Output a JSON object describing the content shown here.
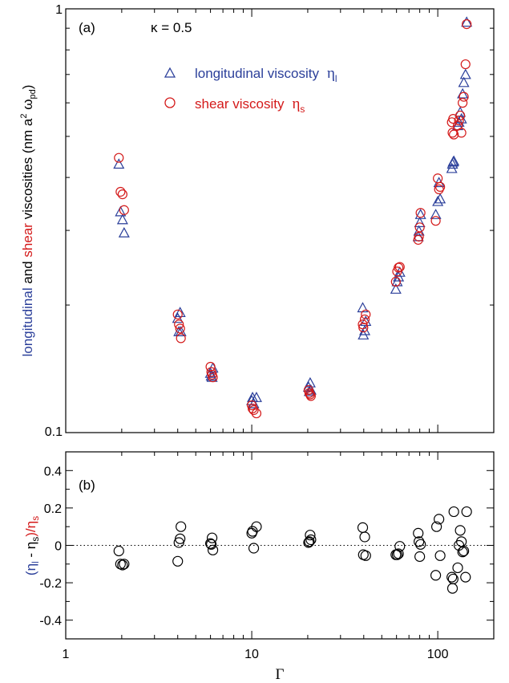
{
  "colors": {
    "longitudinal": "#2b3f9a",
    "shear": "#d41a1a",
    "diff": "#000000"
  },
  "chart_data": [
    {
      "type": "scatter",
      "panel_label": "(a)",
      "annotation": "κ = 0.5",
      "x_scale": "log",
      "y_scale": "log",
      "xlim": [
        1,
        200
      ],
      "ylim": [
        0.1,
        1
      ],
      "y_tick_labels": [
        "0.1",
        "1"
      ],
      "ylabel_parts": {
        "a": "longitudinal",
        "b": " and ",
        "c": "shear",
        "d": " viscosities (nm a",
        "e": "2",
        "f": " ω",
        "g": "pd",
        "h": ")"
      },
      "legend_pos": "top-center",
      "series": [
        {
          "name": "longitudinal viscosity",
          "symbol": "η",
          "symbol_sub": "l",
          "marker": "triangle",
          "points": [
            [
              1.93,
              0.43
            ],
            [
              1.97,
              0.332
            ],
            [
              2.02,
              0.318
            ],
            [
              2.06,
              0.296
            ],
            [
              4.0,
              0.186
            ],
            [
              4.06,
              0.173
            ],
            [
              4.12,
              0.192
            ],
            [
              4.16,
              0.173
            ],
            [
              6.0,
              0.138
            ],
            [
              6.06,
              0.136
            ],
            [
              6.12,
              0.135
            ],
            [
              6.18,
              0.142
            ],
            [
              10.0,
              0.119
            ],
            [
              10.1,
              0.121
            ],
            [
              10.25,
              0.117
            ],
            [
              10.6,
              0.121
            ],
            [
              20.2,
              0.128
            ],
            [
              20.4,
              0.125
            ],
            [
              20.6,
              0.131
            ],
            [
              20.8,
              0.126
            ],
            [
              39.5,
              0.197
            ],
            [
              39.8,
              0.17
            ],
            [
              40.5,
              0.174
            ],
            [
              41.0,
              0.183
            ],
            [
              59.5,
              0.218
            ],
            [
              60.5,
              0.227
            ],
            [
              61.5,
              0.233
            ],
            [
              62.5,
              0.239
            ],
            [
              78.5,
              0.29
            ],
            [
              79.2,
              0.299
            ],
            [
              80.0,
              0.313
            ],
            [
              80.8,
              0.327
            ],
            [
              97.5,
              0.327
            ],
            [
              100.0,
              0.351
            ],
            [
              101.5,
              0.389
            ],
            [
              103.0,
              0.356
            ],
            [
              119.0,
              0.42
            ],
            [
              120.0,
              0.43
            ],
            [
              121.0,
              0.435
            ],
            [
              122.0,
              0.437
            ],
            [
              128.0,
              0.53
            ],
            [
              130.0,
              0.54
            ],
            [
              132.0,
              0.57
            ],
            [
              134.0,
              0.55
            ],
            [
              136.0,
              0.63
            ],
            [
              138.0,
              0.67
            ],
            [
              141.0,
              0.7
            ],
            [
              143.0,
              0.93
            ]
          ]
        },
        {
          "name": "shear viscosity",
          "symbol": "η",
          "symbol_sub": "s",
          "marker": "circle",
          "points": [
            [
              1.93,
              0.445
            ],
            [
              1.97,
              0.37
            ],
            [
              2.02,
              0.365
            ],
            [
              2.06,
              0.335
            ],
            [
              4.0,
              0.19
            ],
            [
              4.06,
              0.18
            ],
            [
              4.12,
              0.176
            ],
            [
              4.16,
              0.167
            ],
            [
              6.0,
              0.143
            ],
            [
              6.06,
              0.139
            ],
            [
              6.12,
              0.137
            ],
            [
              6.18,
              0.135
            ],
            [
              10.0,
              0.116
            ],
            [
              10.1,
              0.114
            ],
            [
              10.25,
              0.113
            ],
            [
              10.6,
              0.111
            ],
            [
              20.2,
              0.126
            ],
            [
              20.4,
              0.124
            ],
            [
              20.6,
              0.123
            ],
            [
              20.8,
              0.122
            ],
            [
              39.5,
              0.18
            ],
            [
              39.8,
              0.177
            ],
            [
              40.5,
              0.185
            ],
            [
              41.0,
              0.19
            ],
            [
              59.5,
              0.227
            ],
            [
              60.5,
              0.24
            ],
            [
              61.5,
              0.245
            ],
            [
              62.5,
              0.246
            ],
            [
              78.5,
              0.285
            ],
            [
              79.2,
              0.29
            ],
            [
              80.0,
              0.305
            ],
            [
              80.8,
              0.33
            ],
            [
              97.5,
              0.316
            ],
            [
              100.0,
              0.398
            ],
            [
              101.5,
              0.375
            ],
            [
              103.0,
              0.38
            ],
            [
              119.0,
              0.54
            ],
            [
              120.0,
              0.51
            ],
            [
              121.0,
              0.55
            ],
            [
              122.0,
              0.505
            ],
            [
              128.0,
              0.53
            ],
            [
              130.0,
              0.545
            ],
            [
              132.0,
              0.56
            ],
            [
              134.0,
              0.51
            ],
            [
              136.0,
              0.6
            ],
            [
              138.0,
              0.62
            ],
            [
              141.0,
              0.74
            ],
            [
              143.0,
              0.92
            ]
          ]
        }
      ]
    },
    {
      "type": "scatter",
      "panel_label": "(b)",
      "x_scale": "log",
      "xlim": [
        1,
        200
      ],
      "ylim": [
        -0.5,
        0.5
      ],
      "xlabel": "Γ",
      "x_tick_labels": [
        "1",
        "10",
        "100"
      ],
      "y_tick_labels": [
        "0.4",
        "0.2",
        "0",
        "-0.2",
        "-0.4"
      ],
      "ylabel_parts": {
        "a": "(η",
        "b": "l",
        "c": " - η",
        "d": "s",
        "e": ")/η",
        "f": "s"
      },
      "reference_line": 0,
      "series": [
        {
          "marker": "circle",
          "points": [
            [
              1.93,
              -0.03
            ],
            [
              1.97,
              -0.1
            ],
            [
              2.02,
              -0.105
            ],
            [
              2.06,
              -0.1
            ],
            [
              4.0,
              -0.085
            ],
            [
              4.06,
              0.015
            ],
            [
              4.12,
              0.035
            ],
            [
              4.16,
              0.1
            ],
            [
              6.0,
              0.01
            ],
            [
              6.06,
              0.005
            ],
            [
              6.12,
              0.04
            ],
            [
              6.18,
              -0.025
            ],
            [
              10.0,
              0.065
            ],
            [
              10.1,
              0.075
            ],
            [
              10.25,
              -0.015
            ],
            [
              10.6,
              0.1
            ],
            [
              20.2,
              0.015
            ],
            [
              20.4,
              0.02
            ],
            [
              20.6,
              0.055
            ],
            [
              20.8,
              0.03
            ],
            [
              39.5,
              0.095
            ],
            [
              39.8,
              -0.05
            ],
            [
              40.5,
              0.045
            ],
            [
              41.0,
              -0.055
            ],
            [
              59.5,
              -0.05
            ],
            [
              60.5,
              -0.05
            ],
            [
              61.5,
              -0.045
            ],
            [
              62.5,
              -0.005
            ],
            [
              78.5,
              0.065
            ],
            [
              79.2,
              0.02
            ],
            [
              80.0,
              -0.06
            ],
            [
              80.8,
              0.005
            ],
            [
              97.5,
              -0.16
            ],
            [
              98.5,
              0.1
            ],
            [
              101.5,
              0.14
            ],
            [
              103.0,
              -0.055
            ],
            [
              119.0,
              -0.17
            ],
            [
              120.0,
              -0.23
            ],
            [
              121.0,
              -0.18
            ],
            [
              122.0,
              0.18
            ],
            [
              128.0,
              -0.12
            ],
            [
              130.0,
              0.0
            ],
            [
              132.0,
              0.08
            ],
            [
              134.0,
              0.02
            ],
            [
              136.0,
              -0.035
            ],
            [
              138.0,
              -0.03
            ],
            [
              141.0,
              -0.17
            ],
            [
              143.0,
              0.18
            ]
          ]
        }
      ]
    }
  ]
}
